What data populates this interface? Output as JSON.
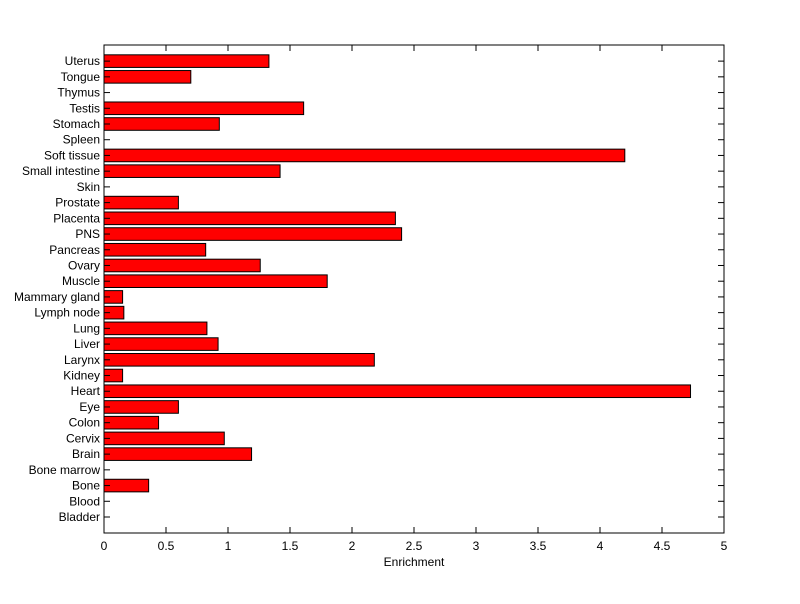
{
  "chart_data": {
    "type": "bar",
    "orientation": "horizontal",
    "xlabel": "Enrichment",
    "ylabel": "",
    "title": "",
    "xlim": [
      0,
      5
    ],
    "xticks": [
      0,
      0.5,
      1,
      1.5,
      2,
      2.5,
      3,
      3.5,
      4,
      4.5,
      5
    ],
    "xtick_labels": [
      "0",
      "0.5",
      "1",
      "1.5",
      "2",
      "2.5",
      "3",
      "3.5",
      "4",
      "4.5",
      "5"
    ],
    "grid": false,
    "legend": "none",
    "bar_color": "#ff0000",
    "bar_edge_color": "#000000",
    "categories": [
      "Bladder",
      "Blood",
      "Bone",
      "Bone marrow",
      "Brain",
      "Cervix",
      "Colon",
      "Eye",
      "Heart",
      "Kidney",
      "Larynx",
      "Liver",
      "Lung",
      "Lymph node",
      "Mammary gland",
      "Muscle",
      "Ovary",
      "Pancreas",
      "PNS",
      "Placenta",
      "Prostate",
      "Skin",
      "Small intestine",
      "Soft tissue",
      "Spleen",
      "Stomach",
      "Testis",
      "Thymus",
      "Tongue",
      "Uterus"
    ],
    "values": [
      0,
      0,
      0.36,
      0,
      1.19,
      0.97,
      0.44,
      0.6,
      4.73,
      0.15,
      2.18,
      0.92,
      0.83,
      0.16,
      0.15,
      1.8,
      1.26,
      0.82,
      2.4,
      2.35,
      0.6,
      0,
      1.42,
      4.2,
      0,
      0.93,
      1.61,
      0,
      0.7,
      1.33
    ]
  }
}
